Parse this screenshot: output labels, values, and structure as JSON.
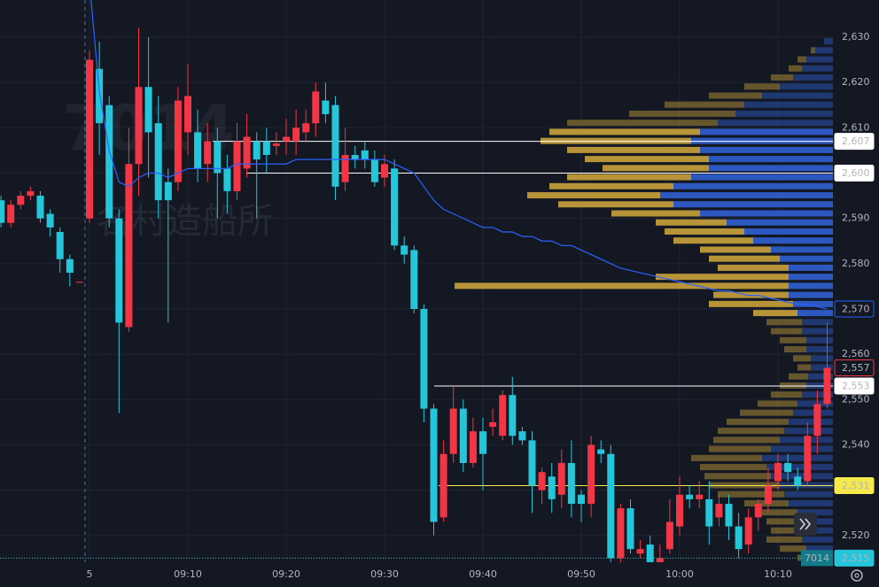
{
  "chart_data": {
    "type": "candlestick",
    "symbol": "7014",
    "company": "名村造船所",
    "categories": [
      null,
      null,
      null,
      null,
      null,
      null,
      null,
      null,
      null,
      "5",
      null,
      null,
      null,
      null,
      null,
      null,
      null,
      null,
      null,
      "09:10",
      null,
      null,
      null,
      null,
      null,
      null,
      null,
      null,
      null,
      "09:20",
      null,
      null,
      null,
      null,
      null,
      null,
      null,
      null,
      null,
      "09:30",
      null,
      null,
      null,
      null,
      null,
      null,
      null,
      null,
      null,
      "09:40",
      null,
      null,
      null,
      null,
      null,
      null,
      null,
      null,
      null,
      "09:50",
      null,
      null,
      null,
      null,
      null,
      null,
      null,
      null,
      null,
      "10:00",
      null,
      null,
      null,
      null,
      null,
      null,
      null,
      null,
      null,
      "10:10",
      null,
      null,
      null,
      null,
      null
    ],
    "open": [
      2594,
      2589,
      2593,
      2595,
      2595,
      2591,
      2587,
      2581,
      2575.8,
      2590,
      2623,
      2615,
      2590,
      2566,
      2602,
      2619,
      2611,
      2598,
      2598,
      2609,
      2609,
      2602,
      2607,
      2601,
      2596,
      2601,
      2607,
      2607,
      2606,
      2607,
      2607,
      2609,
      2611,
      2616,
      2615,
      2598,
      2604,
      2605,
      2603,
      2599,
      2601,
      2584,
      2583,
      2570,
      2548,
      2524,
      2538,
      2548,
      2536,
      2543,
      2544,
      2542,
      2551,
      2543,
      2541,
      2530,
      2533,
      2529,
      2536,
      2529,
      2527,
      2539,
      2538,
      2515,
      2526,
      2516,
      2518,
      2514,
      2517,
      2522,
      2529,
      2528,
      2528,
      2524,
      2527,
      2522,
      2518,
      2524,
      2527,
      2532,
      2536,
      2533,
      2532,
      2542,
      2549
    ],
    "high": [
      2595,
      2594,
      2596,
      2597,
      2596,
      2592,
      2588,
      2582,
      2576,
      2627,
      2629,
      2617,
      2592,
      2610,
      2632,
      2630,
      2617,
      2601,
      2619,
      2624,
      2614,
      2611,
      2610,
      2604,
      2611,
      2613,
      2609,
      2610,
      2609,
      2612,
      2614,
      2614,
      2620,
      2620,
      2617,
      2610,
      2606,
      2607,
      2605,
      2604,
      2603,
      2586,
      2584,
      2571,
      2549,
      2541,
      2553,
      2550,
      2546,
      2546,
      2548,
      2552,
      2555,
      2544,
      2543,
      2535,
      2536,
      2539,
      2541,
      2530,
      2542,
      2541,
      2540,
      2527,
      2528,
      2519,
      2520,
      2518,
      2528,
      2533,
      2531,
      2532,
      2532,
      2529,
      2529,
      2525,
      2526,
      2528,
      2535,
      2538,
      2538,
      2535,
      2545,
      2552,
      2567
    ],
    "low": [
      2588,
      2588,
      2592,
      2594,
      2589,
      2586,
      2578,
      2575,
      2575.8,
      2589,
      2604,
      2588,
      2547,
      2565,
      2595,
      2599,
      2590,
      2567,
      2596,
      2604,
      2598,
      2598,
      2590,
      2591,
      2594,
      2599,
      2590,
      2600,
      2604,
      2604,
      2604,
      2607,
      2608,
      2611,
      2594,
      2596,
      2601,
      2601,
      2597,
      2597,
      2583,
      2580,
      2569,
      2545,
      2520,
      2523,
      2536,
      2534,
      2535,
      2530,
      2542,
      2541,
      2540,
      2540,
      2525,
      2527,
      2525,
      2526,
      2524,
      2523,
      2524,
      2536,
      2514,
      2513,
      2516,
      2515,
      2513,
      2513,
      2516,
      2520,
      2526,
      2526,
      2518,
      2522,
      2519,
      2515,
      2516,
      2521,
      2525,
      2530,
      2532,
      2530,
      2531,
      2538,
      2548
    ],
    "close": [
      2589,
      2593,
      2595,
      2596,
      2590,
      2588,
      2581,
      2578,
      2576,
      2625,
      2611,
      2590,
      2567,
      2602,
      2619,
      2609,
      2594,
      2594,
      2616,
      2617,
      2601,
      2607,
      2600,
      2596,
      2607,
      2608,
      2603,
      2604,
      2606.5,
      2608,
      2610,
      2611,
      2618,
      2613,
      2597,
      2604,
      2603,
      2603,
      2598,
      2602,
      2584,
      2582,
      2570,
      2548,
      2523,
      2538,
      2548,
      2536,
      2543,
      2538,
      2545,
      2551,
      2542,
      2541,
      2531,
      2534,
      2528,
      2536,
      2527,
      2527,
      2540,
      2538,
      2515,
      2526,
      2517,
      2517,
      2514,
      2515,
      2523,
      2529,
      2528,
      2529,
      2522,
      2527,
      2522,
      2517,
      2524,
      2527,
      2531,
      2536,
      2534,
      2531,
      2542,
      2549,
      2557
    ],
    "up_color": "#f23645",
    "down_color": "#26c6da",
    "series": [
      {
        "name": "VWAP",
        "color": "#2962ff",
        "values": [
          null,
          null,
          null,
          null,
          null,
          null,
          null,
          null,
          null,
          2642,
          2618,
          2605,
          2598,
          2597,
          2599,
          2600,
          2600,
          2599,
          2600,
          2601,
          2601,
          2601,
          2601,
          2601,
          2602,
          2602,
          2602,
          2602,
          2602,
          2602,
          2603,
          2603,
          2603,
          2603,
          2603,
          2603,
          2603,
          2603,
          2603,
          2603,
          2602,
          2601,
          2600,
          2597,
          2594,
          2592,
          2591,
          2590,
          2589,
          2588,
          2588,
          2587,
          2587,
          2586,
          2586,
          2585,
          2585,
          2584,
          2584,
          2583,
          2582,
          2581,
          2580,
          2579,
          2578.5,
          2578,
          2577.5,
          2577,
          2576.5,
          2576,
          2575.5,
          2575,
          2574.5,
          2574,
          2574,
          2573.5,
          2573,
          2573,
          2572.5,
          2572,
          2571.5,
          2571,
          2571,
          2570.5,
          2570
        ],
        "last_label": {
          "value": 2570,
          "label": "2,570"
        }
      }
    ],
    "volume_profile": {
      "prices": [
        2629,
        2627,
        2625,
        2623,
        2621,
        2619,
        2617,
        2615,
        2613,
        2611,
        2609,
        2607,
        2605,
        2603,
        2601,
        2599,
        2597,
        2595,
        2593,
        2591,
        2589,
        2587,
        2585,
        2583,
        2581,
        2579,
        2577,
        2575,
        2573,
        2571,
        2569,
        2567,
        2565,
        2563,
        2561,
        2559,
        2557,
        2555,
        2553,
        2551,
        2549,
        2547,
        2545,
        2543,
        2541,
        2539,
        2537,
        2535,
        2533,
        2531,
        2529,
        2527,
        2525,
        2523,
        2521,
        2519,
        2517,
        2515
      ],
      "total": [
        10,
        25,
        40,
        50,
        70,
        100,
        140,
        190,
        230,
        300,
        320,
        330,
        300,
        280,
        260,
        300,
        320,
        345,
        310,
        250,
        200,
        190,
        180,
        150,
        140,
        130,
        200,
        427,
        135,
        140,
        90,
        75,
        70,
        60,
        55,
        45,
        40,
        50,
        60,
        70,
        85,
        105,
        120,
        130,
        135,
        140,
        160,
        150,
        145,
        140,
        130,
        100,
        80,
        75,
        70,
        75,
        60,
        40
      ],
      "up": [
        10,
        20,
        30,
        35,
        45,
        60,
        80,
        100,
        110,
        130,
        150,
        160,
        150,
        140,
        140,
        160,
        180,
        195,
        180,
        150,
        120,
        100,
        90,
        70,
        60,
        50,
        50,
        50,
        50,
        45,
        40,
        35,
        35,
        30,
        30,
        25,
        25,
        28,
        30,
        35,
        40,
        45,
        50,
        55,
        60,
        70,
        80,
        75,
        70,
        60,
        55,
        50,
        40,
        35,
        35,
        35,
        30,
        20
      ],
      "value_area": [
        2569,
        2609
      ],
      "up_color": "#2f5fd0",
      "down_color": "#c9a23a"
    },
    "levels": [
      {
        "value": 2607,
        "label": "2,607",
        "color": "#ffffff"
      },
      {
        "value": 2600,
        "label": "2,600",
        "color": "#ffffff"
      },
      {
        "value": 2553,
        "label": "2,553",
        "color": "#ffffff"
      },
      {
        "value": 2531,
        "label": "2,531",
        "color": "#f5e94b"
      }
    ],
    "last_price": {
      "value": 2557,
      "label": "2,557",
      "color": "#f23645"
    },
    "low_line": {
      "value": 2515,
      "label": "2,515",
      "tag": "7014",
      "color": "#26c6da"
    },
    "ylim": [
      2514.1,
      2638.2
    ],
    "yticks": [
      {
        "value": 2520,
        "label": "2,520"
      },
      {
        "value": 2530,
        "label": "2,530"
      },
      {
        "value": 2540,
        "label": "2,540"
      },
      {
        "value": 2550,
        "label": "2,550"
      },
      {
        "value": 2560,
        "label": "2,560"
      },
      {
        "value": 2570,
        "label": "2,570"
      },
      {
        "value": 2580,
        "label": "2,580"
      },
      {
        "value": 2590,
        "label": "2,590"
      },
      {
        "value": 2600,
        "label": "2,600"
      },
      {
        "value": 2610,
        "label": "2,610"
      },
      {
        "value": 2620,
        "label": "2,620"
      },
      {
        "value": 2630,
        "label": "2,630"
      }
    ],
    "grid": true
  }
}
